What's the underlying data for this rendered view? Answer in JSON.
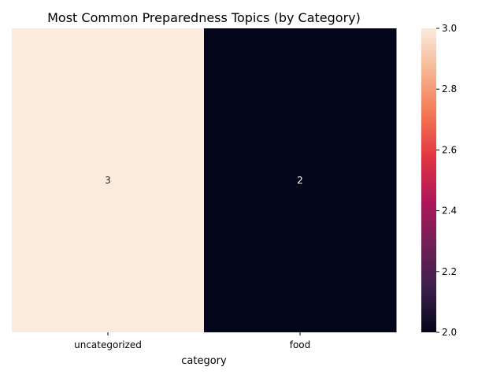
{
  "chart_data": {
    "type": "heatmap",
    "title": "Most Common Preparedness Topics (by Category)",
    "xlabel": "category",
    "ylabel": "",
    "categories": [
      "uncategorized",
      "food"
    ],
    "rows": [
      ""
    ],
    "values": [
      [
        3,
        2
      ]
    ],
    "value_labels": [
      "3",
      "2"
    ],
    "colorbar": {
      "range": [
        2.0,
        3.0
      ],
      "ticks": [
        2.0,
        2.2,
        2.4,
        2.6,
        2.8,
        3.0
      ],
      "tick_labels": [
        "2.0",
        "2.2",
        "2.4",
        "2.6",
        "2.8",
        "3.0"
      ],
      "colormap": [
        "#03051a",
        "#3b1f4a",
        "#701f57",
        "#ad1759",
        "#e13342",
        "#f37651",
        "#f6b48f",
        "#faebdd"
      ]
    },
    "grid": false,
    "legend": "colorbar-right"
  }
}
